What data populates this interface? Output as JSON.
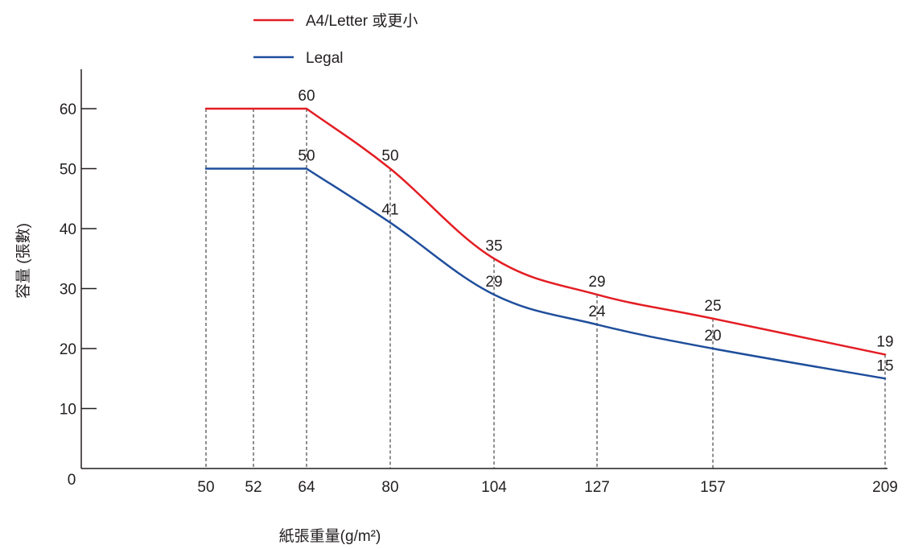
{
  "chart_data": {
    "type": "line",
    "xlabel": "紙張重量(g/m²)",
    "ylabel": "容量 (張數)",
    "ylim": [
      0,
      60
    ],
    "yticks": [
      10,
      20,
      30,
      40,
      50,
      60
    ],
    "origin_label": "0",
    "x": [
      50,
      52,
      64,
      80,
      104,
      127,
      157,
      209
    ],
    "x_tick_labels": [
      "50",
      "52",
      "64",
      "80",
      "104",
      "127",
      "157",
      "209"
    ],
    "grid": "dashed vertical drop lines at each x",
    "legend_position": "top-left",
    "series": [
      {
        "name": "A4/Letter 或更小",
        "color": "#e31e24",
        "points": [
          [
            50,
            60
          ],
          [
            64,
            60
          ],
          [
            80,
            50
          ],
          [
            104,
            35
          ],
          [
            127,
            29
          ],
          [
            157,
            25
          ],
          [
            209,
            19
          ]
        ],
        "labels": [
          [
            64,
            "60"
          ],
          [
            80,
            "50"
          ],
          [
            104,
            "35"
          ],
          [
            127,
            "29"
          ],
          [
            157,
            "25"
          ],
          [
            209,
            "19"
          ]
        ]
      },
      {
        "name": "Legal",
        "color": "#1f4e9c",
        "points": [
          [
            50,
            50
          ],
          [
            64,
            50
          ],
          [
            80,
            41
          ],
          [
            104,
            29
          ],
          [
            127,
            24
          ],
          [
            157,
            20
          ],
          [
            209,
            15
          ]
        ],
        "labels": [
          [
            64,
            "50"
          ],
          [
            80,
            "41"
          ],
          [
            104,
            "29"
          ],
          [
            127,
            "24"
          ],
          [
            157,
            "20"
          ],
          [
            209,
            "15"
          ]
        ]
      }
    ]
  }
}
